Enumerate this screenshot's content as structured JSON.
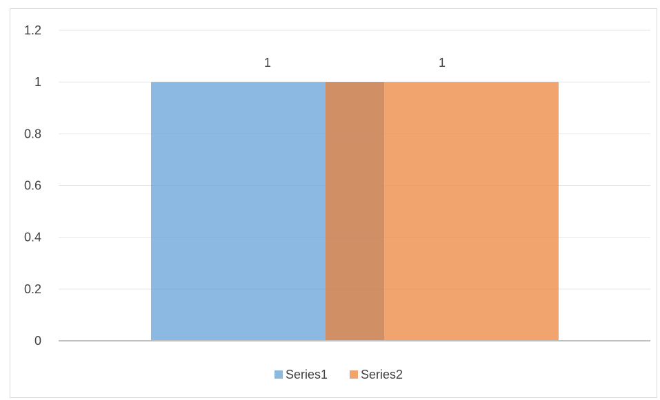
{
  "chart_data": {
    "type": "bar",
    "categories": [
      ""
    ],
    "series": [
      {
        "name": "Series1",
        "values": [
          1
        ],
        "color": "#5b9bd5"
      },
      {
        "name": "Series2",
        "values": [
          1
        ],
        "color": "#ed7d31"
      }
    ],
    "ylim": [
      0,
      1.2
    ],
    "y_ticks": [
      "0",
      "0.2",
      "0.4",
      "0.6",
      "0.8",
      "1",
      "1.2"
    ],
    "data_labels": [
      "1",
      "1"
    ],
    "bar_overlap": true,
    "bar_opacity": 0.7,
    "grid": true,
    "legend_position": "bottom",
    "title": "",
    "xlabel": "",
    "ylabel": ""
  }
}
